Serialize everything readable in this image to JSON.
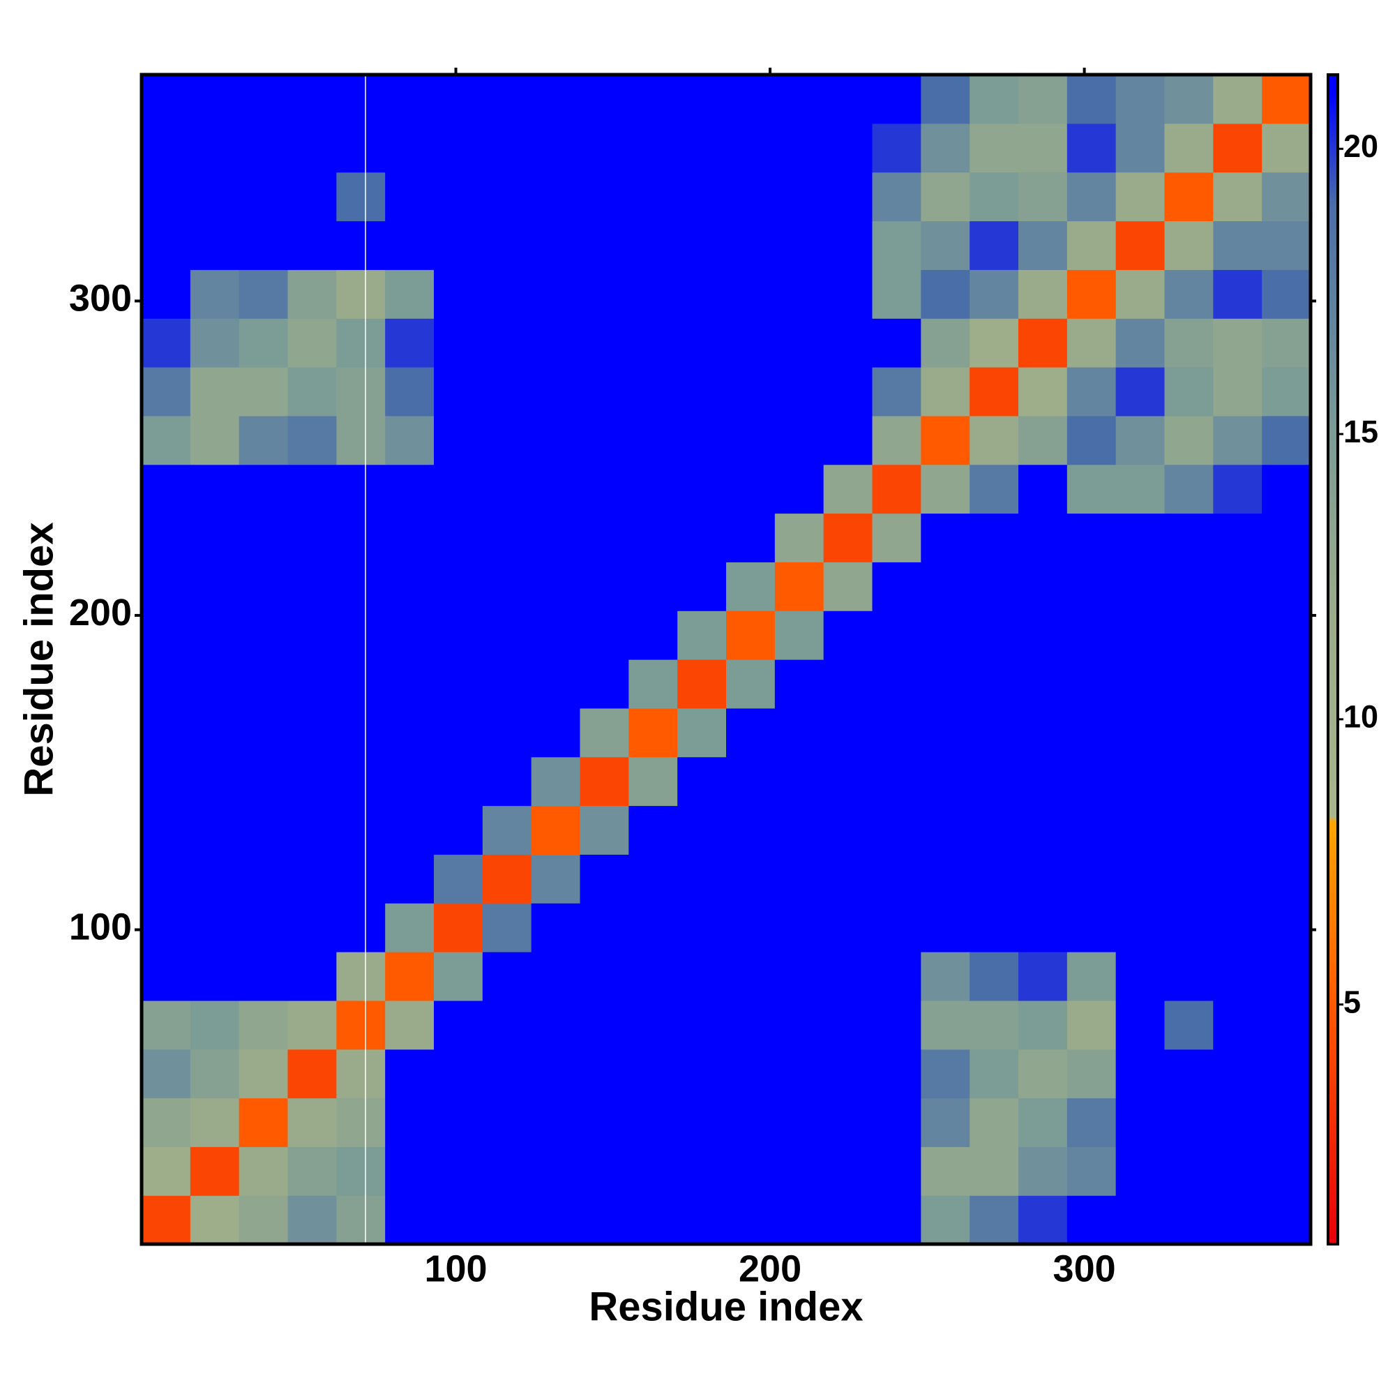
{
  "chart_data": {
    "type": "heatmap",
    "xlabel": "Residue index",
    "ylabel": "Residue index",
    "x": [
      7.75,
      23.25,
      38.75,
      54.25,
      69.75,
      85.25,
      100.75,
      116.25,
      131.75,
      147.25,
      162.75,
      178.25,
      193.75,
      209.25,
      224.75,
      240.25,
      255.75,
      271.25,
      286.75,
      302.25,
      317.75,
      333.25,
      348.75,
      364.25
    ],
    "y": [
      7.75,
      23.25,
      38.75,
      54.25,
      69.75,
      85.25,
      100.75,
      116.25,
      131.75,
      147.25,
      162.75,
      178.25,
      193.75,
      209.25,
      224.75,
      240.25,
      255.75,
      271.25,
      286.75,
      302.25,
      317.75,
      333.25,
      348.75,
      364.25
    ],
    "values": [
      [
        4,
        11,
        13,
        16,
        14,
        21,
        21,
        21,
        21,
        21,
        21,
        21,
        21,
        21,
        21,
        21,
        15,
        18,
        20,
        21,
        21,
        21,
        21,
        21
      ],
      [
        11,
        4,
        12,
        14,
        15,
        21,
        21,
        21,
        21,
        21,
        21,
        21,
        21,
        21,
        21,
        21,
        13,
        13,
        16,
        17,
        21,
        21,
        21,
        21
      ],
      [
        13,
        12,
        5,
        12,
        13,
        21,
        21,
        21,
        21,
        21,
        21,
        21,
        21,
        21,
        21,
        21,
        17,
        13,
        15,
        18,
        21,
        21,
        21,
        21
      ],
      [
        16,
        14,
        12,
        4,
        12,
        21,
        21,
        21,
        21,
        21,
        21,
        21,
        21,
        21,
        21,
        21,
        18,
        15,
        13,
        14,
        21,
        21,
        21,
        21
      ],
      [
        14,
        15,
        13,
        12,
        5,
        12,
        21,
        21,
        21,
        21,
        21,
        21,
        21,
        21,
        21,
        21,
        14,
        14,
        15,
        12,
        21,
        19,
        21,
        21
      ],
      [
        21,
        21,
        21,
        21,
        12,
        5,
        15,
        21,
        21,
        21,
        21,
        21,
        21,
        21,
        21,
        21,
        16,
        19,
        20,
        15,
        21,
        21,
        21,
        21
      ],
      [
        21,
        21,
        21,
        21,
        21,
        15,
        4,
        18,
        21,
        21,
        21,
        21,
        21,
        21,
        21,
        21,
        21,
        21,
        21,
        21,
        21,
        21,
        21,
        21
      ],
      [
        21,
        21,
        21,
        21,
        21,
        21,
        18,
        4,
        17,
        21,
        21,
        21,
        21,
        21,
        21,
        21,
        21,
        21,
        21,
        21,
        21,
        21,
        21,
        21
      ],
      [
        21,
        21,
        21,
        21,
        21,
        21,
        21,
        17,
        5,
        16,
        21,
        21,
        21,
        21,
        21,
        21,
        21,
        21,
        21,
        21,
        21,
        21,
        21,
        21
      ],
      [
        21,
        21,
        21,
        21,
        21,
        21,
        21,
        21,
        16,
        4,
        14,
        21,
        21,
        21,
        21,
        21,
        21,
        21,
        21,
        21,
        21,
        21,
        21,
        21
      ],
      [
        21,
        21,
        21,
        21,
        21,
        21,
        21,
        21,
        21,
        14,
        5,
        15,
        21,
        21,
        21,
        21,
        21,
        21,
        21,
        21,
        21,
        21,
        21,
        21
      ],
      [
        21,
        21,
        21,
        21,
        21,
        21,
        21,
        21,
        21,
        21,
        15,
        4,
        15,
        21,
        21,
        21,
        21,
        21,
        21,
        21,
        21,
        21,
        21,
        21
      ],
      [
        21,
        21,
        21,
        21,
        21,
        21,
        21,
        21,
        21,
        21,
        21,
        15,
        5,
        15,
        21,
        21,
        21,
        21,
        21,
        21,
        21,
        21,
        21,
        21
      ],
      [
        21,
        21,
        21,
        21,
        21,
        21,
        21,
        21,
        21,
        21,
        21,
        21,
        15,
        5,
        13,
        21,
        21,
        21,
        21,
        21,
        21,
        21,
        21,
        21
      ],
      [
        21,
        21,
        21,
        21,
        21,
        21,
        21,
        21,
        21,
        21,
        21,
        21,
        21,
        13,
        4,
        13,
        21,
        21,
        21,
        21,
        21,
        21,
        21,
        21
      ],
      [
        21,
        21,
        21,
        21,
        21,
        21,
        21,
        21,
        21,
        21,
        21,
        21,
        21,
        21,
        13,
        4,
        13,
        18,
        21,
        15,
        15,
        17,
        20,
        21
      ],
      [
        15,
        13,
        17,
        18,
        14,
        16,
        21,
        21,
        21,
        21,
        21,
        21,
        21,
        21,
        21,
        13,
        5,
        12,
        14,
        19,
        16,
        13,
        16,
        19
      ],
      [
        18,
        13,
        13,
        15,
        14,
        19,
        21,
        21,
        21,
        21,
        21,
        21,
        21,
        21,
        21,
        18,
        12,
        4,
        11,
        17,
        20,
        15,
        13,
        15
      ],
      [
        20,
        16,
        15,
        13,
        15,
        20,
        21,
        21,
        21,
        21,
        21,
        21,
        21,
        21,
        21,
        21,
        14,
        11,
        4,
        12,
        17,
        14,
        13,
        14
      ],
      [
        21,
        17,
        18,
        14,
        12,
        15,
        21,
        21,
        21,
        21,
        21,
        21,
        21,
        21,
        21,
        15,
        19,
        17,
        12,
        5,
        12,
        17,
        20,
        19
      ],
      [
        21,
        21,
        21,
        21,
        21,
        21,
        21,
        21,
        21,
        21,
        21,
        21,
        21,
        21,
        21,
        15,
        16,
        20,
        17,
        12,
        4,
        12,
        17,
        17
      ],
      [
        21,
        21,
        21,
        21,
        19,
        21,
        21,
        21,
        21,
        21,
        21,
        21,
        21,
        21,
        21,
        17,
        13,
        15,
        14,
        17,
        12,
        5,
        12,
        16
      ],
      [
        21,
        21,
        21,
        21,
        21,
        21,
        21,
        21,
        21,
        21,
        21,
        21,
        21,
        21,
        21,
        20,
        16,
        13,
        13,
        20,
        17,
        12,
        4,
        12
      ],
      [
        21,
        21,
        21,
        21,
        21,
        21,
        21,
        21,
        21,
        21,
        21,
        21,
        21,
        21,
        21,
        21,
        19,
        15,
        14,
        19,
        17,
        16,
        12,
        5
      ]
    ],
    "xlim": [
      0,
      372
    ],
    "ylim": [
      0,
      372
    ],
    "xticks": [
      100,
      200,
      300
    ],
    "yticks": [
      100,
      200,
      300
    ],
    "zlim": [
      0.8,
      21.3
    ],
    "zticks": [
      5,
      10,
      15,
      20
    ],
    "colorscale": [
      {
        "value": 0.8,
        "color": "#e8000b"
      },
      {
        "value": 5,
        "color": "#ff5a00"
      },
      {
        "value": 8.2,
        "color": "#ffa500"
      },
      {
        "value": 8.3,
        "color": "#a9b68c"
      },
      {
        "value": 12,
        "color": "#9aab8b"
      },
      {
        "value": 15,
        "color": "#7c9c96"
      },
      {
        "value": 19,
        "color": "#4a6ea8"
      },
      {
        "value": 21,
        "color": "#0000ff"
      },
      {
        "value": 21.3,
        "color": "#0000ff"
      }
    ]
  }
}
